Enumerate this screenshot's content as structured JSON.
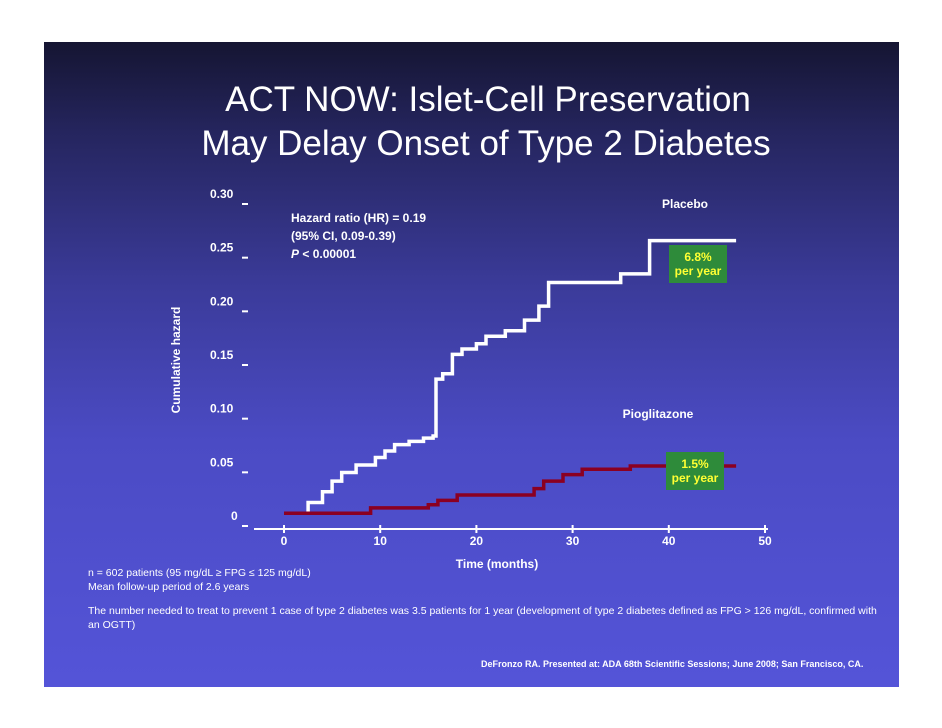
{
  "title": {
    "line1": "ACT NOW: Islet-Cell Preservation",
    "line2": "May Delay Onset of Type 2 Diabetes"
  },
  "chart_data": {
    "type": "line",
    "step": true,
    "xlabel": "Time (months)",
    "ylabel": "Cumulative hazard",
    "xlim": [
      0,
      50
    ],
    "ylim": [
      0,
      0.3
    ],
    "x_ticks": [
      "0",
      "10",
      "20",
      "30",
      "40",
      "50"
    ],
    "y_ticks": [
      "0",
      "0.05",
      "0.10",
      "0.15",
      "0.20",
      "0.25",
      "0.30"
    ],
    "annotation": {
      "line1": "Hazard ratio (HR) = 0.19",
      "line2": "(95% CI, 0.09-0.39)",
      "p_symbol": "P",
      "p_value": " < 0.00001"
    },
    "series": [
      {
        "name": "Placebo",
        "color": "#ffffff",
        "rate_line1": "6.8%",
        "rate_line2": "per year",
        "points": [
          [
            0,
            0.01
          ],
          [
            2.5,
            0.01
          ],
          [
            2.5,
            0.02
          ],
          [
            4,
            0.02
          ],
          [
            4,
            0.03
          ],
          [
            5,
            0.03
          ],
          [
            5,
            0.04
          ],
          [
            6,
            0.04
          ],
          [
            6,
            0.048
          ],
          [
            7.5,
            0.048
          ],
          [
            7.5,
            0.055
          ],
          [
            9.5,
            0.055
          ],
          [
            9.5,
            0.062
          ],
          [
            10.5,
            0.062
          ],
          [
            10.5,
            0.068
          ],
          [
            11.5,
            0.068
          ],
          [
            11.5,
            0.074
          ],
          [
            13,
            0.074
          ],
          [
            13,
            0.077
          ],
          [
            14.5,
            0.077
          ],
          [
            14.5,
            0.08
          ],
          [
            15.5,
            0.08
          ],
          [
            15.5,
            0.082
          ],
          [
            15.8,
            0.082
          ],
          [
            15.8,
            0.135
          ],
          [
            16.5,
            0.135
          ],
          [
            16.5,
            0.14
          ],
          [
            17.5,
            0.14
          ],
          [
            17.5,
            0.158
          ],
          [
            18.5,
            0.158
          ],
          [
            18.5,
            0.163
          ],
          [
            20,
            0.163
          ],
          [
            20,
            0.168
          ],
          [
            21,
            0.168
          ],
          [
            21,
            0.175
          ],
          [
            23,
            0.175
          ],
          [
            23,
            0.18
          ],
          [
            25,
            0.18
          ],
          [
            25,
            0.19
          ],
          [
            26.5,
            0.19
          ],
          [
            26.5,
            0.203
          ],
          [
            27.5,
            0.203
          ],
          [
            27.5,
            0.225
          ],
          [
            35,
            0.225
          ],
          [
            35,
            0.233
          ],
          [
            38,
            0.233
          ],
          [
            38,
            0.264
          ],
          [
            47,
            0.264
          ]
        ]
      },
      {
        "name": "Pioglitazone",
        "color": "#8b0022",
        "rate_line1": "1.5%",
        "rate_line2": "per year",
        "points": [
          [
            0,
            0.01
          ],
          [
            9,
            0.01
          ],
          [
            9,
            0.015
          ],
          [
            15,
            0.015
          ],
          [
            15,
            0.018
          ],
          [
            16,
            0.018
          ],
          [
            16,
            0.022
          ],
          [
            18,
            0.022
          ],
          [
            18,
            0.027
          ],
          [
            26,
            0.027
          ],
          [
            26,
            0.033
          ],
          [
            27,
            0.033
          ],
          [
            27,
            0.04
          ],
          [
            29,
            0.04
          ],
          [
            29,
            0.046
          ],
          [
            31,
            0.046
          ],
          [
            31,
            0.051
          ],
          [
            36,
            0.051
          ],
          [
            36,
            0.054
          ],
          [
            47,
            0.054
          ]
        ]
      }
    ]
  },
  "footnotes": {
    "patients": "n = 602 patients (95 mg/dL ≥ FPG ≤ 125 mg/dL)",
    "followup": "Mean follow-up period of 2.6 years",
    "nnt": "The number needed to treat to prevent 1 case of type 2 diabetes was 3.5 patients for 1 year (development of type 2 diabetes defined as FPG > 126 mg/dL, confirmed with an OGTT)",
    "citation": "DeFronzo RA. Presented at: ADA 68th Scientific Sessions; June 2008; San Francisco, CA."
  }
}
